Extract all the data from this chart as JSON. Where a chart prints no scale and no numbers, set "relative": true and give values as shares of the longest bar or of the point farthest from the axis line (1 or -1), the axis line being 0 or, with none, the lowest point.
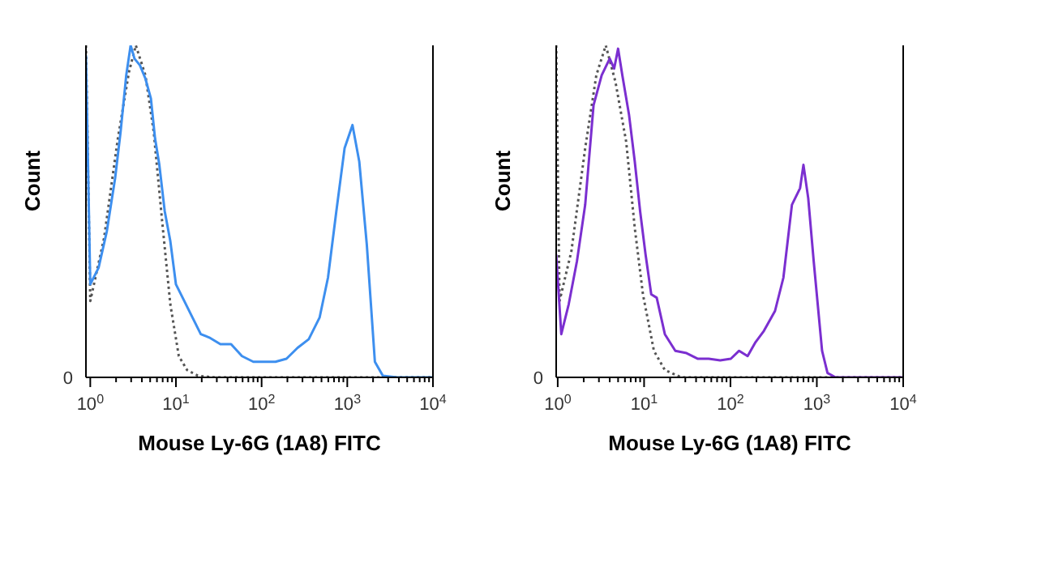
{
  "chart_data": [
    {
      "type": "line",
      "relative": true,
      "xlabel": "Mouse Ly-6G (1A8) FITC",
      "ylabel": "Count",
      "log": "x",
      "xlim": [
        0.89,
        10000
      ],
      "xticks": [
        {
          "value": 1,
          "label": "10$^{0}$"
        },
        {
          "value": 2,
          "label": null
        },
        {
          "value": 3,
          "label": null
        },
        {
          "value": 4,
          "label": null
        },
        {
          "value": 5,
          "label": null
        },
        {
          "value": 6,
          "label": null
        },
        {
          "value": 7,
          "label": null
        },
        {
          "value": 8,
          "label": null
        },
        {
          "value": 9,
          "label": null
        },
        {
          "value": 10,
          "label": "10$^{1}$"
        },
        {
          "value": 20,
          "label": null
        },
        {
          "value": 30,
          "label": null
        },
        {
          "value": 40,
          "label": null
        },
        {
          "value": 50,
          "label": null
        },
        {
          "value": 60,
          "label": null
        },
        {
          "value": 70,
          "label": null
        },
        {
          "value": 80,
          "label": null
        },
        {
          "value": 90,
          "label": null
        },
        {
          "value": 100,
          "label": "10$^{2}$"
        },
        {
          "value": 200,
          "label": null
        },
        {
          "value": 300,
          "label": null
        },
        {
          "value": 400,
          "label": null
        },
        {
          "value": 500,
          "label": null
        },
        {
          "value": 600,
          "label": null
        },
        {
          "value": 700,
          "label": null
        },
        {
          "value": 800,
          "label": null
        },
        {
          "value": 900,
          "label": null
        },
        {
          "value": 1000,
          "label": "10$^{3}$"
        },
        {
          "value": 2000,
          "label": null
        },
        {
          "value": 3000,
          "label": null
        },
        {
          "value": 4000,
          "label": null
        },
        {
          "value": 5000,
          "label": null
        },
        {
          "value": 6000,
          "label": null
        },
        {
          "value": 7000,
          "label": null
        },
        {
          "value": 8000,
          "label": null
        },
        {
          "value": 9000,
          "label": null
        },
        {
          "value": 10000,
          "label": "10$^{4}$"
        }
      ],
      "annotations": [
        "0"
      ],
      "marker": "none",
      "series": [
        {
          "color": "#555555",
          "line_style": "dotted",
          "x": [
            0.89,
            1,
            1.45,
            2.1,
            2.83,
            3.4,
            4.4,
            5.5,
            6.9,
            8.6,
            10.8,
            13.5,
            18,
            28,
            10000
          ],
          "values": [
            1,
            0.23,
            0.42,
            0.72,
            0.92,
            1,
            0.91,
            0.74,
            0.47,
            0.22,
            0.064,
            0.022,
            0.005,
            0,
            0
          ]
        },
        {
          "color": "#3d8fef",
          "line_style": "solid",
          "x": [
            0.89,
            1,
            1.25,
            1.56,
            1.95,
            2.26,
            2.63,
            2.96,
            3.28,
            3.8,
            4.4,
            5.1,
            5.7,
            6.4,
            7.4,
            8.6,
            10,
            12.5,
            15.6,
            19.5,
            24.5,
            33,
            44,
            59,
            80,
            108,
            145,
            195,
            263,
            355,
            475,
            595,
            745,
            930,
            1150,
            1380,
            1690,
            2100,
            2600,
            3800,
            10000
          ],
          "values": [
            0.97,
            0.28,
            0.33,
            0.44,
            0.6,
            0.74,
            0.91,
            1,
            0.96,
            0.94,
            0.9,
            0.84,
            0.72,
            0.64,
            0.5,
            0.41,
            0.28,
            0.23,
            0.18,
            0.13,
            0.12,
            0.1,
            0.1,
            0.064,
            0.047,
            0.047,
            0.047,
            0.056,
            0.089,
            0.115,
            0.18,
            0.3,
            0.5,
            0.69,
            0.76,
            0.65,
            0.4,
            0.047,
            0.005,
            0,
            0
          ]
        }
      ]
    },
    {
      "type": "line",
      "relative": true,
      "xlabel": "Mouse Ly-6G (1A8) FITC",
      "ylabel": "Count",
      "log": "x",
      "xlim": [
        0.96,
        10000
      ],
      "xticks": [
        {
          "value": 1,
          "label": "10$^{0}$"
        },
        {
          "value": 2,
          "label": null
        },
        {
          "value": 3,
          "label": null
        },
        {
          "value": 4,
          "label": null
        },
        {
          "value": 5,
          "label": null
        },
        {
          "value": 6,
          "label": null
        },
        {
          "value": 7,
          "label": null
        },
        {
          "value": 8,
          "label": null
        },
        {
          "value": 9,
          "label": null
        },
        {
          "value": 10,
          "label": "10$^{1}$"
        },
        {
          "value": 20,
          "label": null
        },
        {
          "value": 30,
          "label": null
        },
        {
          "value": 40,
          "label": null
        },
        {
          "value": 50,
          "label": null
        },
        {
          "value": 60,
          "label": null
        },
        {
          "value": 70,
          "label": null
        },
        {
          "value": 80,
          "label": null
        },
        {
          "value": 90,
          "label": null
        },
        {
          "value": 100,
          "label": "10$^{2}$"
        },
        {
          "value": 200,
          "label": null
        },
        {
          "value": 300,
          "label": null
        },
        {
          "value": 400,
          "label": null
        },
        {
          "value": 500,
          "label": null
        },
        {
          "value": 600,
          "label": null
        },
        {
          "value": 700,
          "label": null
        },
        {
          "value": 800,
          "label": null
        },
        {
          "value": 900,
          "label": null
        },
        {
          "value": 1000,
          "label": "10$^{3}$"
        },
        {
          "value": 2000,
          "label": null
        },
        {
          "value": 3000,
          "label": null
        },
        {
          "value": 4000,
          "label": null
        },
        {
          "value": 5000,
          "label": null
        },
        {
          "value": 6000,
          "label": null
        },
        {
          "value": 7000,
          "label": null
        },
        {
          "value": 8000,
          "label": null
        },
        {
          "value": 9000,
          "label": null
        },
        {
          "value": 10000,
          "label": "10$^{4}$"
        }
      ],
      "annotations": [
        "0"
      ],
      "marker": "none",
      "series": [
        {
          "color": "#555555",
          "line_style": "dotted",
          "x": [
            0.96,
            1.05,
            1.44,
            2.08,
            2.8,
            3.6,
            4.66,
            6.2,
            7.8,
            9.7,
            13,
            17.4,
            27,
            10000
          ],
          "values": [
            1,
            0.23,
            0.38,
            0.69,
            0.91,
            1,
            0.89,
            0.71,
            0.45,
            0.25,
            0.08,
            0.022,
            0,
            0
          ]
        },
        {
          "color": "#7b2fd0",
          "line_style": "solid",
          "x": [
            0.96,
            1.1,
            1.34,
            1.67,
            2.08,
            2.6,
            3.23,
            4,
            4.5,
            5,
            5.6,
            6.7,
            7.8,
            9,
            10.4,
            12.1,
            14,
            17.4,
            23,
            31,
            42,
            56,
            76,
            101,
            126,
            158,
            195,
            244,
            328,
            410,
            515,
            640,
            700,
            795,
            920,
            1150,
            1330,
            1650,
            10000
          ],
          "values": [
            0.37,
            0.13,
            0.22,
            0.35,
            0.52,
            0.82,
            0.91,
            0.96,
            0.93,
            0.99,
            0.91,
            0.79,
            0.65,
            0.5,
            0.37,
            0.25,
            0.24,
            0.13,
            0.08,
            0.073,
            0.056,
            0.056,
            0.051,
            0.056,
            0.08,
            0.064,
            0.106,
            0.14,
            0.2,
            0.3,
            0.52,
            0.57,
            0.64,
            0.54,
            0.35,
            0.08,
            0.013,
            0,
            0
          ]
        }
      ]
    }
  ]
}
